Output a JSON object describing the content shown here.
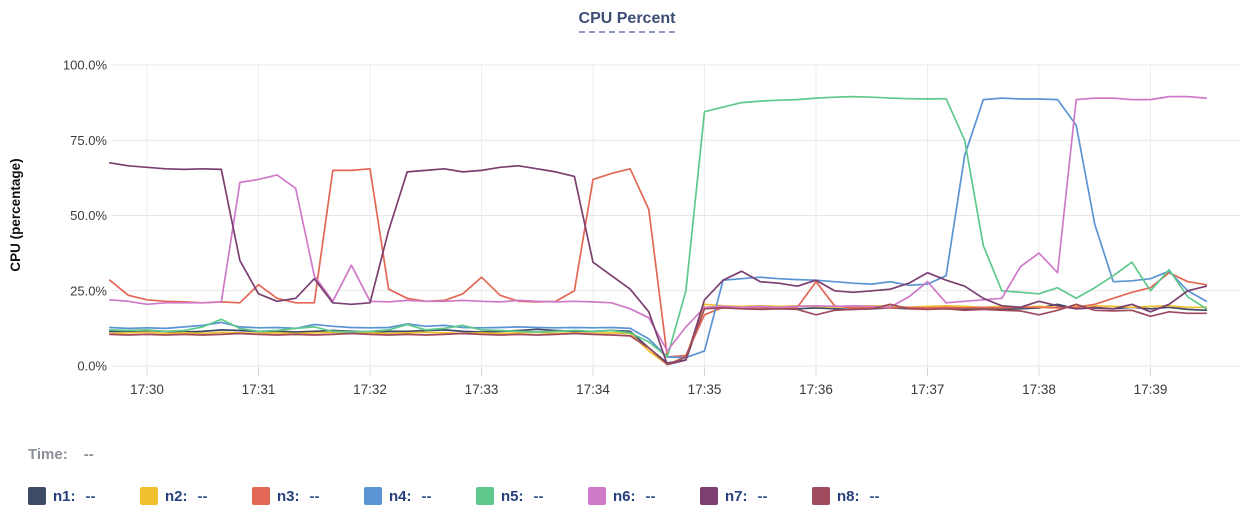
{
  "chart": {
    "title": "CPU Percent",
    "time_row": {
      "label": "Time:",
      "value": "--"
    }
  },
  "chart_data": {
    "type": "line",
    "title": "CPU Percent",
    "xlabel": "",
    "ylabel": "CPU (percentage)",
    "ylim": [
      0,
      100
    ],
    "grid": true,
    "legend_position": "bottom",
    "y_tick_labels": [
      "100.0%",
      "75.0%",
      "50.0%",
      "25.0%",
      "0.0%"
    ],
    "y_tick_values": [
      100,
      75,
      50,
      25,
      0
    ],
    "x_tick_labels": [
      "17:30",
      "17:31",
      "17:32",
      "17:33",
      "17:34",
      "17:35",
      "17:36",
      "17:37",
      "17:38",
      "17:39"
    ],
    "x_start_time": "17:29:40",
    "x_step_seconds": 10,
    "series": [
      {
        "name": "n1",
        "color": "#3f4b66",
        "values": [
          11.5,
          11.5,
          11.8,
          11.5,
          11.3,
          11.5,
          12,
          11.8,
          11.5,
          11.5,
          11.3,
          11.5,
          11.8,
          11.5,
          11.3,
          11.5,
          11.5,
          11.8,
          12,
          11.5,
          11.3,
          11.5,
          11.8,
          12.2,
          11.8,
          11.5,
          11.5,
          11.8,
          11.5,
          6,
          1,
          2,
          19.5,
          19.5,
          19.3,
          19.5,
          19.3,
          19,
          19.3,
          19,
          18.8,
          19,
          19.3,
          19,
          19.3,
          19,
          18.8,
          19,
          18.8,
          19,
          19.3,
          20.5,
          19,
          19.3,
          19,
          19.5,
          19,
          19.5,
          18.8,
          18.5
        ]
      },
      {
        "name": "n2",
        "color": "#f0c12f",
        "values": [
          10.8,
          11,
          11.2,
          10.8,
          11,
          10.8,
          11.2,
          11,
          10.8,
          11,
          10.8,
          11,
          11.2,
          10.8,
          11,
          10.8,
          11,
          11.2,
          11,
          10.8,
          11,
          10.8,
          11,
          11.2,
          10.8,
          11,
          10.8,
          11,
          10.8,
          5,
          0.5,
          3,
          20.5,
          20,
          19.8,
          20,
          19.8,
          20,
          19.8,
          19.5,
          19.8,
          20,
          19.8,
          19.5,
          19.8,
          20,
          19.8,
          19.5,
          19.8,
          19.5,
          19.8,
          19.5,
          19.8,
          20,
          19.8,
          19.5,
          19.8,
          20,
          19.5,
          19.5
        ]
      },
      {
        "name": "n3",
        "color": "#e26855",
        "values": [
          28.5,
          23.5,
          22,
          21.5,
          21.3,
          21,
          21.3,
          21,
          27,
          22.5,
          21,
          21,
          65,
          65,
          65.5,
          25.5,
          22.5,
          21.5,
          21.8,
          24,
          29.5,
          23.5,
          21.5,
          21.3,
          21.5,
          25,
          62,
          64,
          65.5,
          52,
          3,
          3.5,
          17,
          19.5,
          19.3,
          19.5,
          19.3,
          19.5,
          28,
          20,
          19.3,
          19.5,
          19.3,
          19.5,
          19.3,
          19.5,
          19.3,
          19.5,
          19.3,
          19.5,
          19.5,
          19.3,
          19.5,
          20.5,
          22.5,
          24.5,
          26,
          31,
          28,
          27
        ]
      },
      {
        "name": "n4",
        "color": "#5b94d3",
        "values": [
          12.8,
          12.5,
          12.7,
          12.5,
          13,
          13.5,
          14.5,
          13,
          12.7,
          12.8,
          12.5,
          13.8,
          13.2,
          12.8,
          12.7,
          12.8,
          14,
          13.2,
          13.5,
          12.8,
          12.7,
          12.8,
          13,
          12.8,
          12.7,
          12.8,
          12.7,
          12.8,
          12.5,
          9,
          3,
          2.8,
          5,
          28.5,
          29,
          29.5,
          29,
          28.7,
          28.5,
          28,
          27.5,
          27.2,
          28,
          26.8,
          27.2,
          30,
          70,
          88.5,
          89,
          88.7,
          88.7,
          88.5,
          80,
          47,
          28,
          28.3,
          29,
          31.5,
          25,
          21.5
        ]
      },
      {
        "name": "n5",
        "color": "#5fc98b",
        "values": [
          12,
          11.8,
          12,
          11.5,
          11.8,
          13,
          15.5,
          12.5,
          11.5,
          11.8,
          12.5,
          13,
          11.5,
          11.3,
          11.5,
          12,
          13.8,
          12,
          12.5,
          13.5,
          12,
          11.8,
          11.5,
          11.3,
          11.5,
          11.8,
          11.5,
          11.8,
          11,
          8,
          3,
          25,
          84.5,
          86,
          87.5,
          88,
          88.3,
          88.5,
          89,
          89.3,
          89.5,
          89.3,
          89,
          88.8,
          88.7,
          88.8,
          75,
          40,
          25,
          24.5,
          24,
          26,
          22.5,
          26,
          30,
          34.5,
          25,
          32,
          23,
          19
        ]
      },
      {
        "name": "n6",
        "color": "#cf7ac9",
        "values": [
          22,
          21.5,
          20.5,
          21,
          21,
          21,
          21.3,
          61,
          62,
          63.5,
          59,
          30,
          21.5,
          33.5,
          21.5,
          21.3,
          21.8,
          21.5,
          21.5,
          21.8,
          21.5,
          21.3,
          21.8,
          21.5,
          21.3,
          21.5,
          21.3,
          21,
          19,
          16,
          5,
          13,
          19.5,
          19.8,
          19.5,
          19.8,
          19.5,
          19.8,
          20,
          19.8,
          20,
          19.8,
          19.5,
          23,
          28,
          21,
          21.5,
          22,
          22.5,
          33,
          37.5,
          31,
          88.5,
          89,
          89,
          88.5,
          88.5,
          89.5,
          89.5,
          89
        ]
      },
      {
        "name": "n7",
        "color": "#7b3f70",
        "values": [
          67.5,
          66.5,
          66,
          65.5,
          65.3,
          65.5,
          65.3,
          35,
          24,
          21.5,
          22.5,
          29,
          21,
          20.5,
          21,
          45,
          64.5,
          65,
          65.5,
          64.5,
          65,
          66,
          66.5,
          65.5,
          64.5,
          63,
          34.5,
          30,
          25.5,
          18,
          0.5,
          2,
          22,
          28.5,
          31.5,
          28,
          27.5,
          26.5,
          28.5,
          25,
          24.5,
          25,
          25.5,
          27.5,
          31,
          28.5,
          26.5,
          22.5,
          20,
          19.5,
          21.5,
          20,
          19,
          19.5,
          19,
          20.5,
          18,
          20.5,
          25,
          26.5
        ]
      },
      {
        "name": "n8",
        "color": "#a04a5e",
        "values": [
          10.5,
          10.3,
          10.5,
          10.3,
          10.5,
          10.3,
          10.5,
          10.8,
          10.5,
          10.3,
          10.5,
          10.3,
          10.5,
          10.8,
          10.5,
          10.3,
          10.5,
          10.3,
          10.5,
          10.8,
          10.5,
          10.3,
          10.5,
          10.3,
          10.5,
          10.8,
          10.5,
          10.3,
          10,
          6,
          0.5,
          3,
          19,
          19.3,
          19,
          18.8,
          19,
          18.8,
          17,
          18.5,
          18.8,
          19,
          20.5,
          19,
          18.8,
          19,
          18.5,
          18.8,
          18.5,
          18.3,
          17,
          18.5,
          20.5,
          18.5,
          18.3,
          18.5,
          16.5,
          18,
          17.5,
          17.5
        ]
      }
    ],
    "legend": [
      {
        "label": "n1:",
        "value": "--"
      },
      {
        "label": "n2:",
        "value": "--"
      },
      {
        "label": "n3:",
        "value": "--"
      },
      {
        "label": "n4:",
        "value": "--"
      },
      {
        "label": "n5:",
        "value": "--"
      },
      {
        "label": "n6:",
        "value": "--"
      },
      {
        "label": "n7:",
        "value": "--"
      },
      {
        "label": "n8:",
        "value": "--"
      }
    ]
  }
}
